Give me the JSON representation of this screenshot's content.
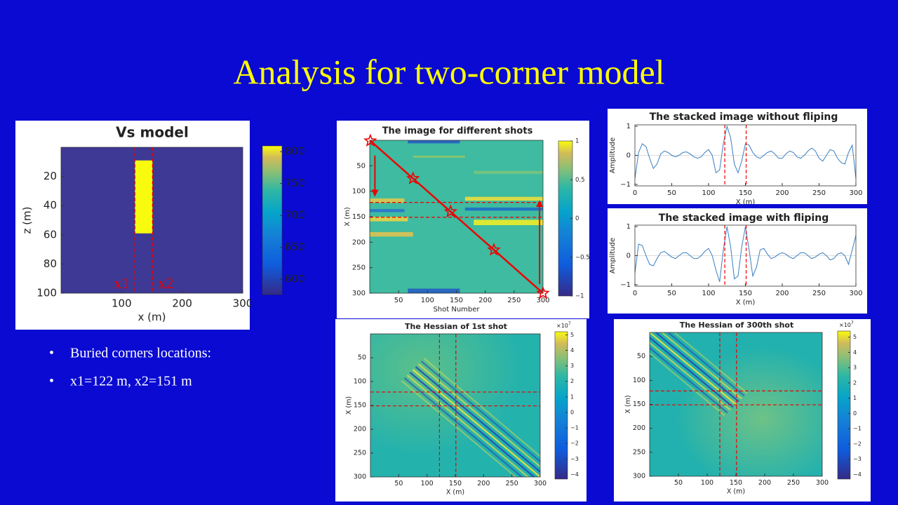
{
  "title": "Analysis for two-corner model",
  "bullets": [
    "Buried corners locations:",
    "x1=122 m, x2=151 m"
  ],
  "chart_data": [
    {
      "type": "heatmap",
      "title": "Vs model",
      "xlabel": "x (m)",
      "ylabel": "z (m)",
      "xlim": [
        0,
        300
      ],
      "ylim": [
        100,
        0
      ],
      "xticks": [
        100,
        200,
        300
      ],
      "yticks": [
        20,
        40,
        60,
        80,
        100
      ],
      "clim": [
        576,
        809
      ],
      "cticks": [
        600,
        650,
        700,
        750,
        800
      ],
      "anomaly": {
        "x": [
          122,
          151
        ],
        "z": [
          9,
          59
        ]
      },
      "vlines": [
        122,
        151
      ],
      "annotations": [
        "x1",
        "x2"
      ]
    },
    {
      "type": "heatmap",
      "title": "The image for different shots",
      "xlabel": "Shot Number",
      "ylabel": "X (m)",
      "xlim": [
        0,
        300
      ],
      "ylim": [
        300,
        0
      ],
      "xticks": [
        50,
        100,
        150,
        200,
        250,
        300
      ],
      "yticks": [
        50,
        100,
        150,
        200,
        250,
        300
      ],
      "clim": [
        -1,
        1
      ],
      "cticks": [
        {
          "value": -1,
          "label": "−1"
        },
        {
          "value": -0.5,
          "label": "−0.5"
        },
        0,
        0.5,
        1
      ],
      "hlines": [
        122,
        151
      ],
      "stars": {
        "x": [
          1,
          75,
          140,
          215,
          300
        ],
        "y": [
          1,
          75,
          140,
          215,
          300
        ]
      }
    },
    {
      "type": "line",
      "title": "The stacked image without fliping",
      "xlabel": "X (m)",
      "ylabel": "Amplitude",
      "xlim": [
        0,
        300
      ],
      "ylim": [
        -1.05,
        1.05
      ],
      "xticks": [
        0,
        50,
        100,
        150,
        200,
        250,
        300
      ],
      "yticks": [
        {
          "value": -1,
          "label": "−1"
        },
        0,
        1
      ],
      "vlines": [
        122,
        151
      ],
      "color": "#3a7ec0",
      "x": [
        0,
        5,
        10,
        15,
        20,
        25,
        30,
        35,
        40,
        45,
        50,
        55,
        60,
        65,
        70,
        75,
        80,
        85,
        90,
        95,
        100,
        105,
        110,
        115,
        120,
        125,
        130,
        135,
        140,
        145,
        150,
        155,
        160,
        165,
        170,
        175,
        180,
        185,
        190,
        195,
        200,
        205,
        210,
        215,
        220,
        225,
        230,
        235,
        240,
        245,
        250,
        255,
        260,
        265,
        270,
        275,
        280,
        285,
        290,
        295,
        300
      ],
      "values": [
        -0.8,
        0.1,
        0.4,
        0.3,
        -0.1,
        -0.45,
        -0.3,
        0.05,
        0.15,
        0.1,
        0,
        -0.05,
        0,
        0.1,
        0.12,
        0.05,
        -0.05,
        -0.1,
        -0.05,
        0.1,
        0.2,
        0,
        -0.6,
        -0.5,
        0.4,
        1,
        0.6,
        -0.3,
        -0.6,
        -0.2,
        0.4,
        0.35,
        0.1,
        -0.05,
        -0.1,
        0,
        0.1,
        0.15,
        0.05,
        -0.1,
        -0.1,
        0.05,
        0.15,
        0.1,
        -0.05,
        -0.1,
        0,
        0.15,
        0.25,
        0.15,
        -0.1,
        -0.2,
        0,
        0.2,
        0.15,
        -0.1,
        -0.25,
        -0.3,
        0.1,
        0.35,
        -0.8
      ]
    },
    {
      "type": "line",
      "title": "The stacked image with fliping",
      "xlabel": "X (m)",
      "ylabel": "Amplitude",
      "xlim": [
        0,
        300
      ],
      "ylim": [
        -1.05,
        1.05
      ],
      "xticks": [
        0,
        50,
        100,
        150,
        200,
        250,
        300
      ],
      "yticks": [
        {
          "value": -1,
          "label": "−1"
        },
        0,
        1
      ],
      "vlines": [
        122,
        151
      ],
      "color": "#3a7ec0",
      "x": [
        0,
        5,
        10,
        15,
        20,
        25,
        30,
        35,
        40,
        45,
        50,
        55,
        60,
        65,
        70,
        75,
        80,
        85,
        90,
        95,
        100,
        105,
        110,
        115,
        120,
        125,
        130,
        135,
        140,
        145,
        150,
        155,
        160,
        165,
        170,
        175,
        180,
        185,
        190,
        195,
        200,
        205,
        210,
        215,
        220,
        225,
        230,
        235,
        240,
        245,
        250,
        255,
        260,
        265,
        270,
        275,
        280,
        285,
        290,
        295,
        300
      ],
      "values": [
        -0.6,
        0.4,
        0.35,
        0,
        -0.3,
        -0.35,
        -0.1,
        0.1,
        0.15,
        0.05,
        -0.05,
        -0.1,
        0,
        0.1,
        0.1,
        0,
        -0.1,
        -0.1,
        0,
        0.15,
        0.25,
        0,
        -0.5,
        -0.9,
        0.2,
        1,
        0.3,
        -0.8,
        -0.7,
        0.3,
        1,
        0.2,
        -0.7,
        -0.4,
        0.2,
        0.25,
        0.05,
        -0.1,
        -0.05,
        0.05,
        0.1,
        0.05,
        -0.05,
        -0.1,
        0,
        0.1,
        0.1,
        0,
        -0.1,
        -0.05,
        0.05,
        0.1,
        0,
        -0.15,
        -0.1,
        0.05,
        0.1,
        0,
        -0.3,
        0.2,
        0.7
      ]
    },
    {
      "type": "heatmap",
      "title": "The Hessian of 1st shot",
      "xlabel": "X (m)",
      "ylabel": "X (m)",
      "xlim": [
        0,
        300
      ],
      "ylim": [
        300,
        0
      ],
      "xticks": [
        50,
        100,
        150,
        200,
        250,
        300
      ],
      "yticks": [
        50,
        100,
        150,
        200,
        250,
        300
      ],
      "clim": [
        -4.3,
        5.2
      ],
      "cticks": [
        5,
        4,
        3,
        2,
        1,
        0,
        {
          "value": -1,
          "label": "−1"
        },
        {
          "value": -2,
          "label": "−2"
        },
        {
          "value": -3,
          "label": "−3"
        },
        {
          "value": -4,
          "label": "−4"
        }
      ],
      "cscale_base": "×10",
      "cscale_exp": "7",
      "vlines": [
        122,
        151
      ],
      "hlines": [
        122,
        151
      ]
    },
    {
      "type": "heatmap",
      "title": "The Hessian of 300th shot",
      "xlabel": "X (m)",
      "ylabel": "X (m)",
      "xlim": [
        0,
        300
      ],
      "ylim": [
        300,
        0
      ],
      "xticks": [
        50,
        100,
        150,
        200,
        250,
        300
      ],
      "yticks": [
        50,
        100,
        150,
        200,
        250,
        300
      ],
      "clim": [
        -4.3,
        5.4
      ],
      "cticks": [
        5,
        4,
        3,
        2,
        1,
        0,
        {
          "value": -1,
          "label": "−1"
        },
        {
          "value": -2,
          "label": "−2"
        },
        {
          "value": -3,
          "label": "−3"
        },
        {
          "value": -4,
          "label": "−4"
        }
      ],
      "cscale_base": "×10",
      "cscale_exp": "7",
      "vlines": [
        122,
        151
      ],
      "hlines": [
        122,
        151
      ]
    }
  ]
}
